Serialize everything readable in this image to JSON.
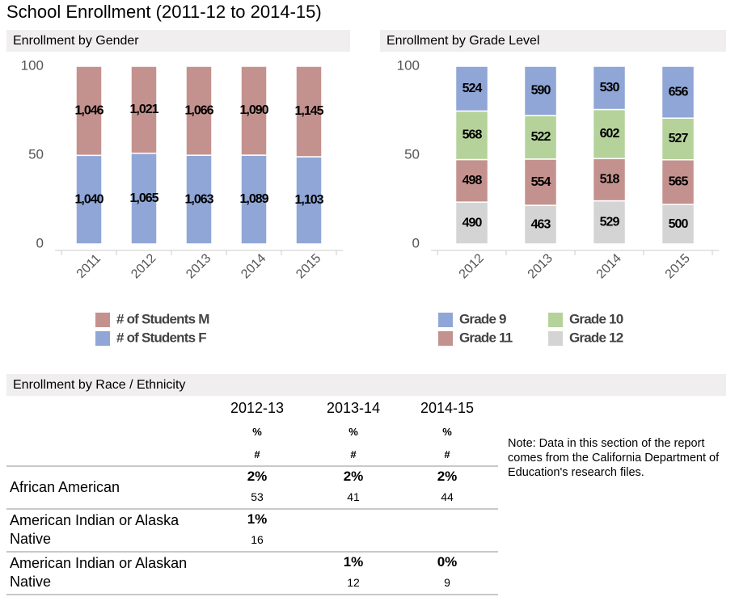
{
  "title": "School Enrollment (2011-12 to 2014-15)",
  "chart_data": [
    {
      "type": "bar",
      "stacking": "percent",
      "title": "Enrollment by Gender",
      "categories": [
        "2011",
        "2012",
        "2013",
        "2014",
        "2015"
      ],
      "series": [
        {
          "name": "# of Students M",
          "color": "#c4928e",
          "values": [
            1046,
            1021,
            1066,
            1090,
            1145
          ],
          "value_labels": [
            "1,046",
            "1,021",
            "1,066",
            "1,090",
            "1,145"
          ]
        },
        {
          "name": "# of Students F",
          "color": "#8fa6d6",
          "values": [
            1040,
            1065,
            1063,
            1089,
            1103
          ],
          "value_labels": [
            "1,040",
            "1,065",
            "1,063",
            "1,089",
            "1,103"
          ]
        }
      ],
      "ylim": [
        0,
        100
      ],
      "yticks": [
        0,
        50,
        100
      ],
      "legend": "bottom"
    },
    {
      "type": "bar",
      "stacking": "percent",
      "title": "Enrollment by Grade Level",
      "categories": [
        "2012",
        "2013",
        "2014",
        "2015"
      ],
      "series": [
        {
          "name": "Grade 9",
          "color": "#8fa6d6",
          "values": [
            524,
            590,
            530,
            656
          ]
        },
        {
          "name": "Grade 10",
          "color": "#b5d29a",
          "values": [
            568,
            522,
            602,
            527
          ]
        },
        {
          "name": "Grade 11",
          "color": "#c4928e",
          "values": [
            498,
            554,
            518,
            565
          ]
        },
        {
          "name": "Grade 12",
          "color": "#d4d4d4",
          "values": [
            490,
            463,
            529,
            500
          ]
        }
      ],
      "ylim": [
        0,
        100
      ],
      "yticks": [
        0,
        50,
        100
      ],
      "legend": "bottom"
    }
  ],
  "table": {
    "title": "Enrollment by Race / Ethnicity",
    "columns": [
      "2012-13",
      "2013-14",
      "2014-15"
    ],
    "subheaders": [
      "%",
      "#"
    ],
    "rows": [
      {
        "label": "African American",
        "cells": [
          {
            "pct": "2%",
            "count": 53
          },
          {
            "pct": "2%",
            "count": 41
          },
          {
            "pct": "2%",
            "count": 44
          }
        ]
      },
      {
        "label": "American Indian or Alaska Native",
        "cells": [
          {
            "pct": "1%",
            "count": 16
          },
          null,
          null
        ]
      },
      {
        "label": "American Indian or Alaskan Native",
        "cells": [
          null,
          {
            "pct": "1%",
            "count": 12
          },
          {
            "pct": "0%",
            "count": 9
          }
        ]
      }
    ]
  },
  "note": "Note: Data in this section of the report comes from the California Department of Education's research files."
}
